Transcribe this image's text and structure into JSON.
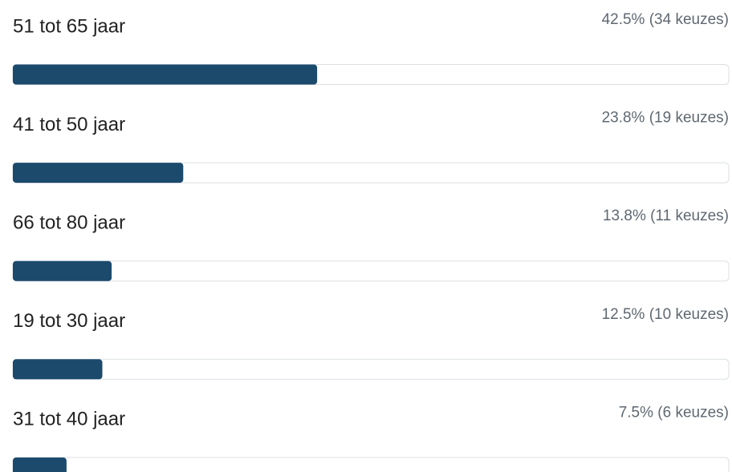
{
  "chart_data": {
    "type": "bar",
    "orientation": "horizontal",
    "categories": [
      "51 tot 65 jaar",
      "41 tot 50 jaar",
      "66 tot 80 jaar",
      "19 tot 30 jaar",
      "31 tot 40 jaar"
    ],
    "values": [
      42.5,
      23.8,
      13.8,
      12.5,
      7.5
    ],
    "value_labels": [
      "42.5% (34 keuzes)",
      "23.8% (19 keuzes)",
      "13.8% (11 keuzes)",
      "12.5% (10 keuzes)",
      "7.5% (6 keuzes)"
    ],
    "color": "#1b4a6d",
    "xlim": [
      0,
      100
    ]
  }
}
